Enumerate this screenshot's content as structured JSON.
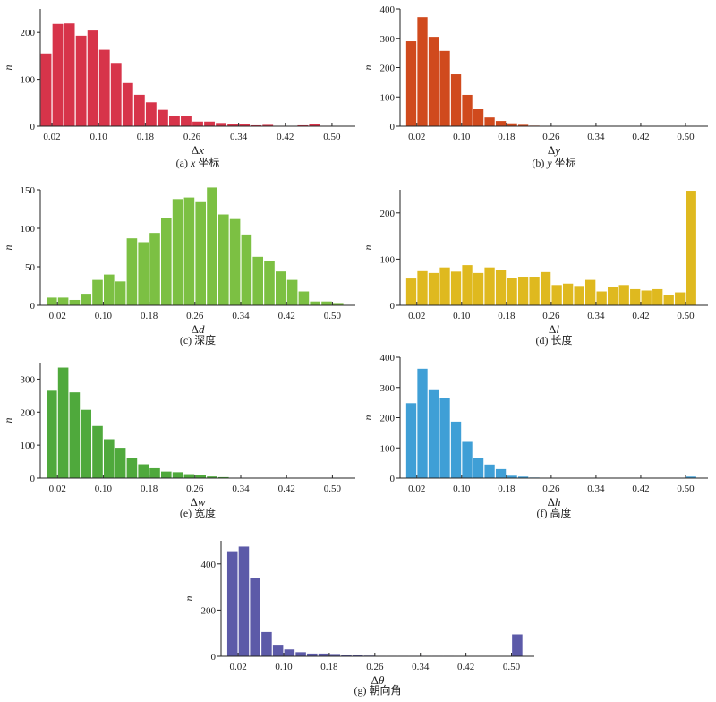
{
  "chart_data": [
    {
      "id": "a",
      "type": "bar",
      "color": "#d7344a",
      "caption_prefix": "(a) ",
      "caption_var": "x",
      "caption_text": " 坐标",
      "xlabel_sym": "Δ",
      "xlabel_var": "x",
      "ylabel": "n",
      "xlim": [
        0.0,
        0.54
      ],
      "ylim": [
        0,
        250
      ],
      "xticks": [
        0.02,
        0.1,
        0.18,
        0.26,
        0.34,
        0.42,
        0.5
      ],
      "xtick_labels": [
        "0.02",
        "0.10",
        "0.18",
        "0.26",
        "0.34",
        "0.42",
        "0.50"
      ],
      "yticks": [
        0,
        100,
        200
      ],
      "ytick_labels": [
        "0",
        "100",
        "200"
      ],
      "bin_start": 0.0,
      "bin_width": 0.02,
      "values": [
        155,
        218,
        219,
        193,
        204,
        163,
        135,
        92,
        67,
        51,
        35,
        21,
        21,
        10,
        10,
        7,
        5,
        4,
        2,
        3,
        1,
        0,
        2,
        4,
        1
      ]
    },
    {
      "id": "b",
      "type": "bar",
      "color": "#d04a1d",
      "caption_prefix": "(b) ",
      "caption_var": "y",
      "caption_text": " 坐标",
      "xlabel_sym": "Δ",
      "xlabel_var": "y",
      "ylabel": "n",
      "xlim": [
        -0.01,
        0.54
      ],
      "ylim": [
        0,
        400
      ],
      "xticks": [
        0.02,
        0.1,
        0.18,
        0.26,
        0.34,
        0.42,
        0.5
      ],
      "xtick_labels": [
        "0.02",
        "0.10",
        "0.18",
        "0.26",
        "0.34",
        "0.42",
        "0.50"
      ],
      "yticks": [
        0,
        100,
        200,
        300,
        400
      ],
      "ytick_labels": [
        "0",
        "100",
        "200",
        "300",
        "400"
      ],
      "bin_start": 0.0,
      "bin_width": 0.02,
      "values": [
        290,
        372,
        305,
        257,
        177,
        107,
        58,
        30,
        18,
        10,
        5,
        2,
        1,
        1
      ]
    },
    {
      "id": "c",
      "type": "bar",
      "color": "#7cc043",
      "caption_prefix": "(c) ",
      "caption_var": "",
      "caption_text": "深度",
      "xlabel_sym": "Δ",
      "xlabel_var": "d",
      "ylabel": "n",
      "xlim": [
        -0.01,
        0.54
      ],
      "ylim": [
        0,
        150
      ],
      "xticks": [
        0.02,
        0.1,
        0.18,
        0.26,
        0.34,
        0.42,
        0.5
      ],
      "xtick_labels": [
        "0.02",
        "0.10",
        "0.18",
        "0.26",
        "0.34",
        "0.42",
        "0.50"
      ],
      "yticks": [
        0,
        50,
        100,
        150
      ],
      "ytick_labels": [
        "0",
        "50",
        "100",
        "150"
      ],
      "bin_start": 0.0,
      "bin_width": 0.02,
      "values": [
        10,
        10,
        7,
        15,
        33,
        40,
        31,
        87,
        82,
        94,
        113,
        138,
        140,
        134,
        153,
        118,
        112,
        92,
        63,
        58,
        44,
        33,
        18,
        5,
        5,
        3
      ]
    },
    {
      "id": "d",
      "type": "bar",
      "color": "#dfb91f",
      "caption_prefix": "(d) ",
      "caption_var": "",
      "caption_text": "长度",
      "xlabel_sym": "Δ",
      "xlabel_var": "l",
      "ylabel": "n",
      "xlim": [
        -0.01,
        0.54
      ],
      "ylim": [
        0,
        250
      ],
      "xticks": [
        0.02,
        0.1,
        0.18,
        0.26,
        0.34,
        0.42,
        0.5
      ],
      "xtick_labels": [
        "0.02",
        "0.10",
        "0.18",
        "0.26",
        "0.34",
        "0.42",
        "0.50"
      ],
      "yticks": [
        0,
        100,
        200
      ],
      "ytick_labels": [
        "0",
        "100",
        "200"
      ],
      "bin_start": 0.0,
      "bin_width": 0.02,
      "values": [
        58,
        74,
        70,
        82,
        73,
        87,
        70,
        82,
        76,
        60,
        62,
        62,
        72,
        44,
        47,
        42,
        55,
        30,
        40,
        44,
        35,
        32,
        35,
        22,
        28,
        248
      ]
    },
    {
      "id": "e",
      "type": "bar",
      "color": "#4fa93c",
      "caption_prefix": "(e) ",
      "caption_var": "",
      "caption_text": "宽度",
      "xlabel_sym": "Δ",
      "xlabel_var": "w",
      "ylabel": "n",
      "xlim": [
        -0.01,
        0.54
      ],
      "ylim": [
        0,
        350
      ],
      "xticks": [
        0.02,
        0.1,
        0.18,
        0.26,
        0.34,
        0.42,
        0.5
      ],
      "xtick_labels": [
        "0.02",
        "0.10",
        "0.18",
        "0.26",
        "0.34",
        "0.42",
        "0.50"
      ],
      "yticks": [
        0,
        100,
        200,
        300
      ],
      "ytick_labels": [
        "0",
        "100",
        "200",
        "300"
      ],
      "bin_start": 0.0,
      "bin_width": 0.02,
      "values": [
        265,
        335,
        260,
        207,
        158,
        118,
        92,
        61,
        42,
        30,
        20,
        18,
        12,
        10,
        5,
        3,
        1
      ]
    },
    {
      "id": "f",
      "type": "bar",
      "color": "#3f9fd6",
      "caption_prefix": "(f) ",
      "caption_var": "",
      "caption_text": "高度",
      "xlabel_sym": "Δ",
      "xlabel_var": "h",
      "ylabel": "n",
      "xlim": [
        -0.01,
        0.54
      ],
      "ylim": [
        0,
        400
      ],
      "xticks": [
        0.02,
        0.1,
        0.18,
        0.26,
        0.34,
        0.42,
        0.5
      ],
      "xtick_labels": [
        "0.02",
        "0.10",
        "0.18",
        "0.26",
        "0.34",
        "0.42",
        "0.50"
      ],
      "yticks": [
        0,
        100,
        200,
        300,
        400
      ],
      "ytick_labels": [
        "0",
        "100",
        "200",
        "300",
        "400"
      ],
      "bin_start": 0.0,
      "bin_width": 0.02,
      "values": [
        248,
        362,
        294,
        266,
        187,
        120,
        67,
        45,
        30,
        8,
        5,
        2,
        1,
        0,
        0,
        0,
        0,
        0,
        0,
        0,
        0,
        0,
        0,
        0,
        0,
        5
      ]
    },
    {
      "id": "g",
      "type": "bar",
      "color": "#5c5aa8",
      "caption_prefix": "(g) ",
      "caption_var": "",
      "caption_text": "朝向角",
      "xlabel_sym": "Δ",
      "xlabel_var": "θ",
      "ylabel": "n",
      "xlim": [
        -0.01,
        0.54
      ],
      "ylim": [
        0,
        500
      ],
      "xticks": [
        0.02,
        0.1,
        0.18,
        0.26,
        0.34,
        0.42,
        0.5
      ],
      "xtick_labels": [
        "0.02",
        "0.10",
        "0.18",
        "0.26",
        "0.34",
        "0.42",
        "0.50"
      ],
      "yticks": [
        0,
        200,
        400
      ],
      "ytick_labels": [
        "0",
        "200",
        "400"
      ],
      "bin_start": 0.0,
      "bin_width": 0.02,
      "values": [
        455,
        475,
        338,
        105,
        50,
        30,
        18,
        12,
        12,
        10,
        5,
        5,
        3,
        2,
        2,
        2,
        2,
        2,
        2,
        2,
        1,
        1,
        1,
        1,
        1,
        95
      ]
    }
  ]
}
